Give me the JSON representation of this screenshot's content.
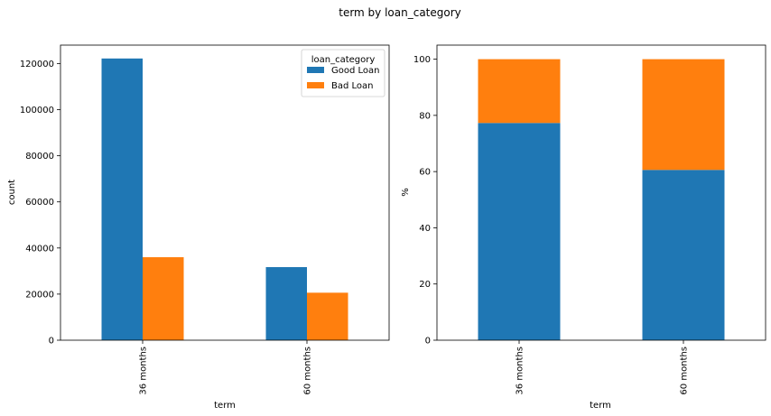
{
  "suptitle": "term by loan_category",
  "colors": {
    "good_loan": "#1f77b4",
    "bad_loan": "#ff7f0e"
  },
  "chart_data": [
    {
      "type": "bar",
      "categories": [
        "36 months",
        "60 months"
      ],
      "series": [
        {
          "name": "Good Loan",
          "values": [
            122200,
            31700
          ]
        },
        {
          "name": "Bad Loan",
          "values": [
            36000,
            20600
          ]
        }
      ],
      "xlabel": "term",
      "ylabel": "count",
      "ylim": [
        0,
        128000
      ],
      "yticks": [
        0,
        20000,
        40000,
        60000,
        80000,
        100000,
        120000
      ],
      "legend": {
        "title": "loan_category",
        "placement": "top-right"
      },
      "grid": false
    },
    {
      "type": "bar",
      "stacked": true,
      "categories": [
        "36 months",
        "60 months"
      ],
      "series": [
        {
          "name": "Good Loan",
          "values": [
            77.3,
            60.6
          ]
        },
        {
          "name": "Bad Loan",
          "values": [
            22.7,
            39.4
          ]
        }
      ],
      "xlabel": "term",
      "ylabel": "%",
      "ylim": [
        0,
        105
      ],
      "yticks": [
        0,
        20,
        40,
        60,
        80,
        100
      ],
      "grid": false
    }
  ]
}
